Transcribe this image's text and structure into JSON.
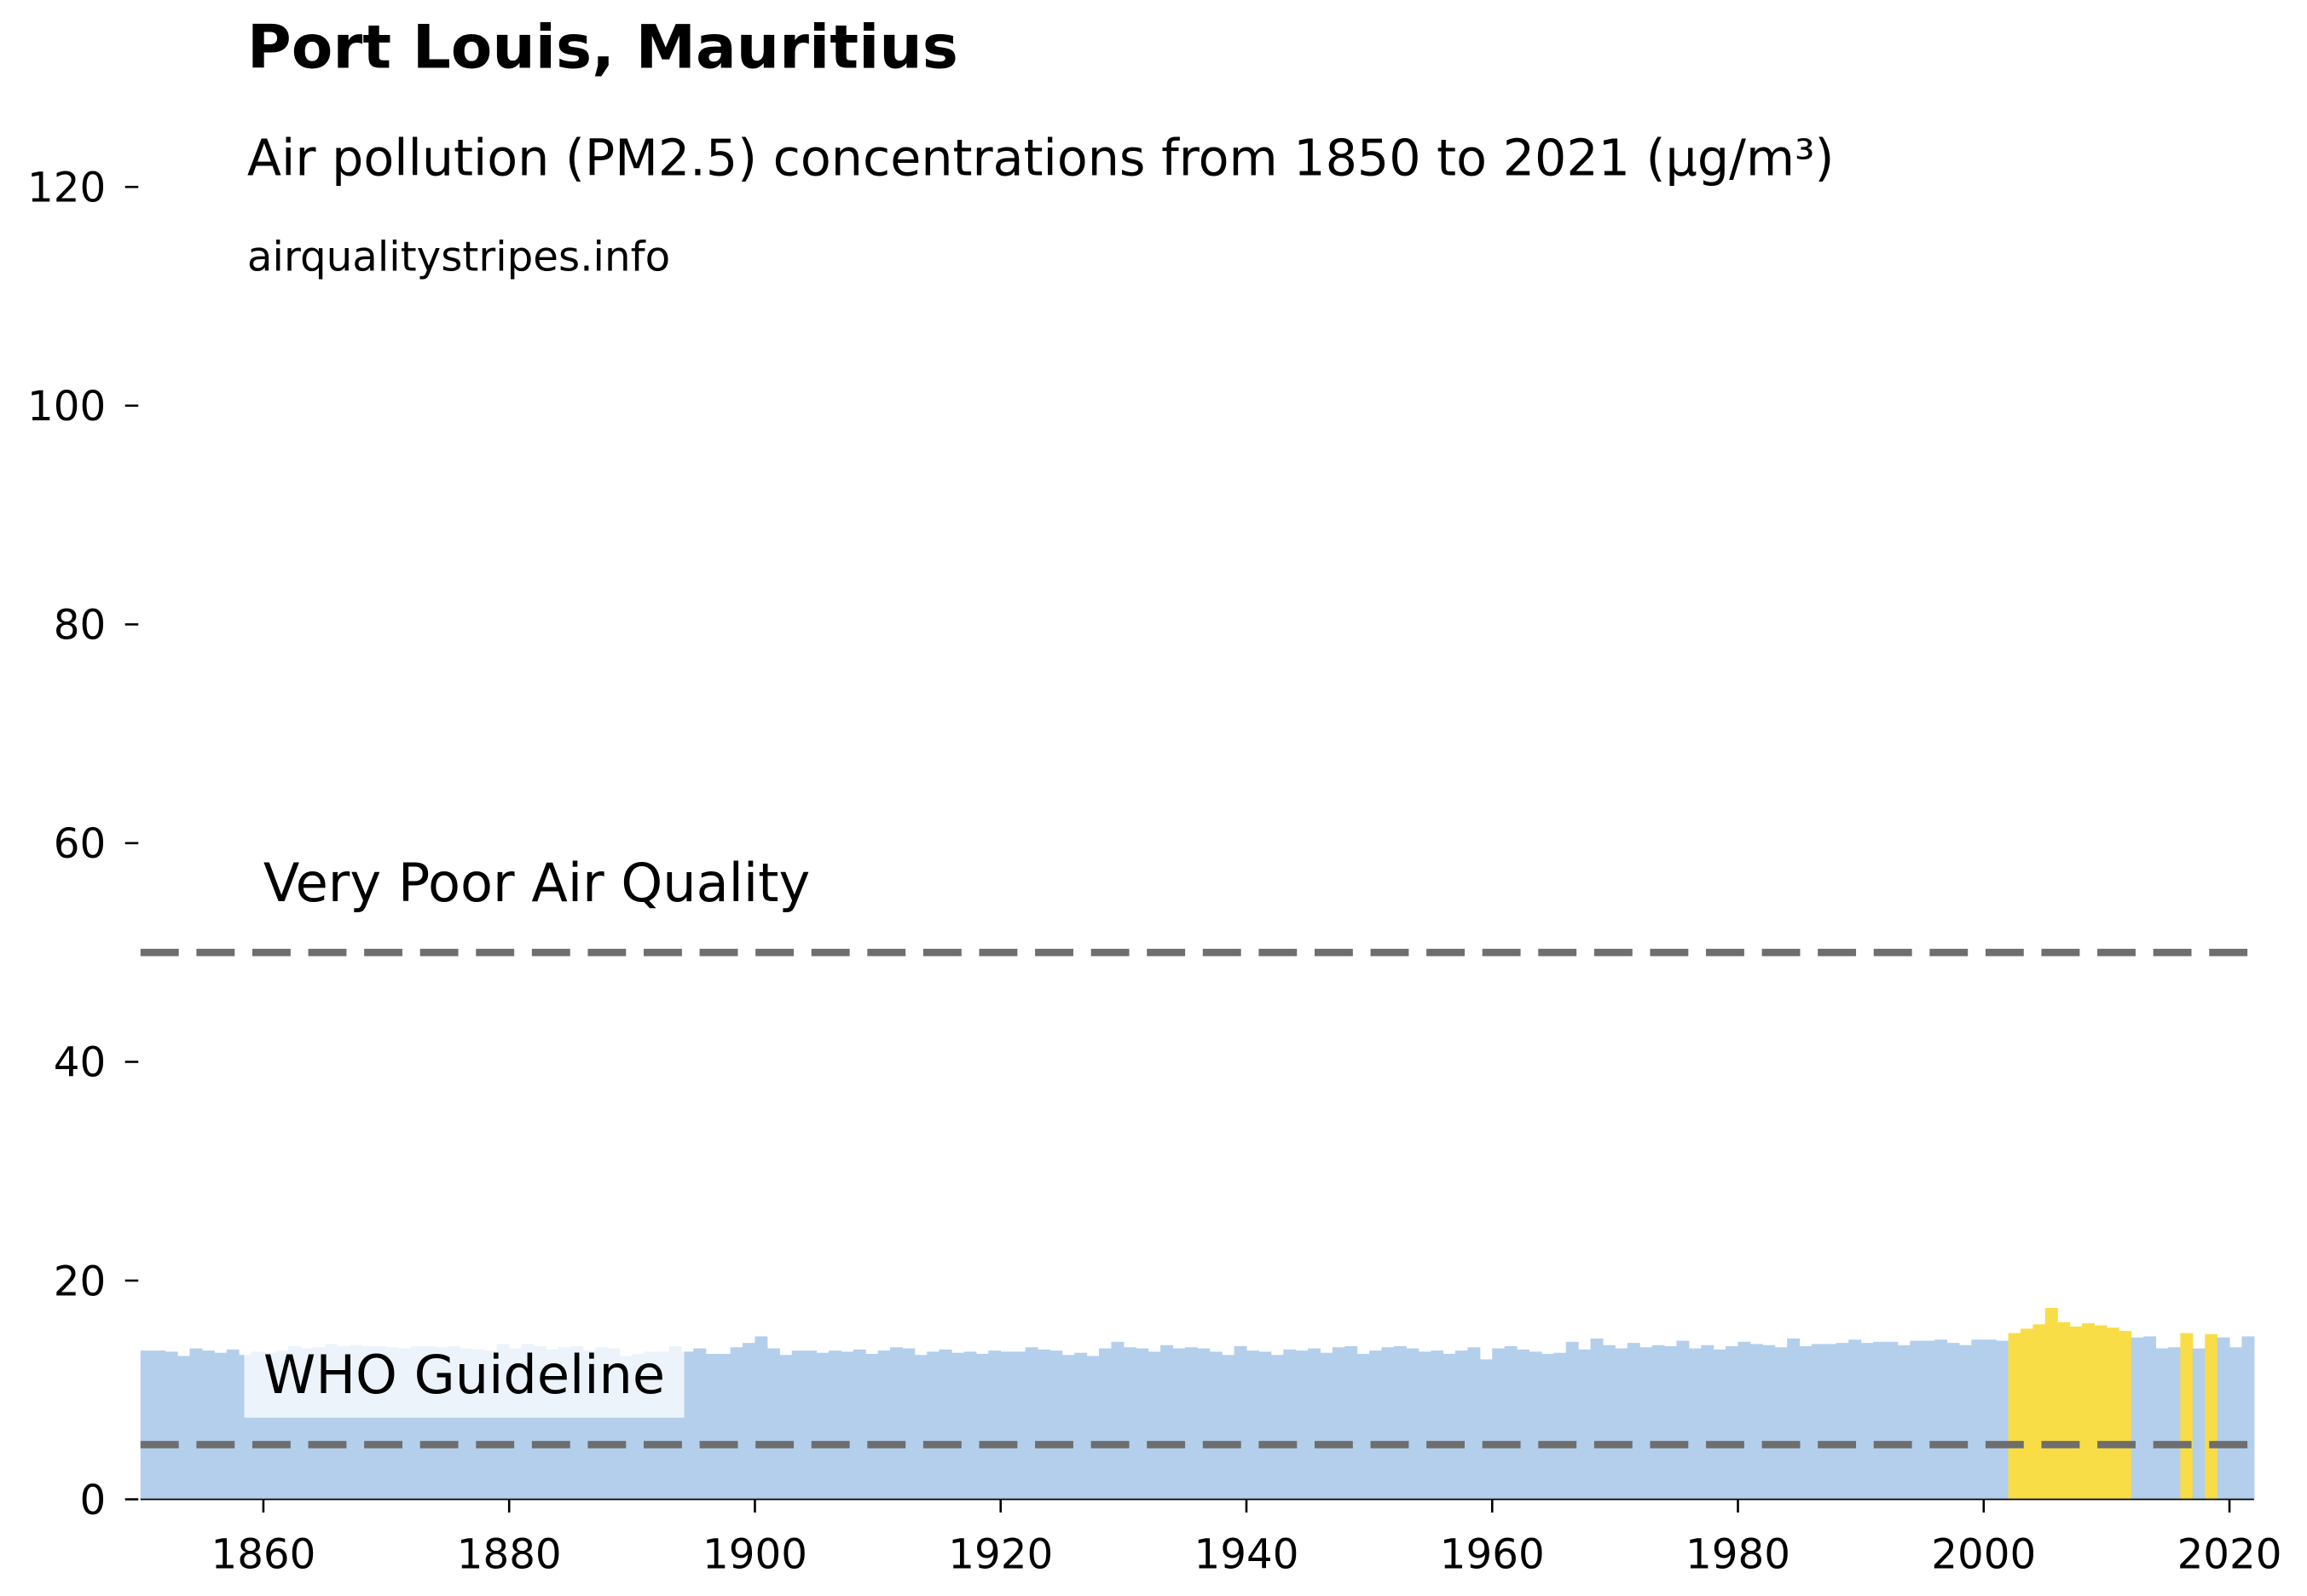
{
  "chart_data": {
    "type": "bar",
    "title": "Port Louis, Mauritius",
    "subtitle": "Air pollution (PM2.5) concentrations from 1850 to 2021 (µg/m³)",
    "source": "airqualitystripes.info",
    "x": [
      1850,
      1851,
      1852,
      1853,
      1854,
      1855,
      1856,
      1857,
      1858,
      1859,
      1860,
      1861,
      1862,
      1863,
      1864,
      1865,
      1866,
      1867,
      1868,
      1869,
      1870,
      1871,
      1872,
      1873,
      1874,
      1875,
      1876,
      1877,
      1878,
      1879,
      1880,
      1881,
      1882,
      1883,
      1884,
      1885,
      1886,
      1887,
      1888,
      1889,
      1890,
      1891,
      1892,
      1893,
      1894,
      1895,
      1896,
      1897,
      1898,
      1899,
      1900,
      1901,
      1902,
      1903,
      1904,
      1905,
      1906,
      1907,
      1908,
      1909,
      1910,
      1911,
      1912,
      1913,
      1914,
      1915,
      1916,
      1917,
      1918,
      1919,
      1920,
      1921,
      1922,
      1923,
      1924,
      1925,
      1926,
      1927,
      1928,
      1929,
      1930,
      1931,
      1932,
      1933,
      1934,
      1935,
      1936,
      1937,
      1938,
      1939,
      1940,
      1941,
      1942,
      1943,
      1944,
      1945,
      1946,
      1947,
      1948,
      1949,
      1950,
      1951,
      1952,
      1953,
      1954,
      1955,
      1956,
      1957,
      1958,
      1959,
      1960,
      1961,
      1962,
      1963,
      1964,
      1965,
      1966,
      1967,
      1968,
      1969,
      1970,
      1971,
      1972,
      1973,
      1974,
      1975,
      1976,
      1977,
      1978,
      1979,
      1980,
      1981,
      1982,
      1983,
      1984,
      1985,
      1986,
      1987,
      1988,
      1989,
      1990,
      1991,
      1992,
      1993,
      1994,
      1995,
      1996,
      1997,
      1998,
      1999,
      2000,
      2001,
      2002,
      2003,
      2004,
      2005,
      2006,
      2007,
      2008,
      2009,
      2010,
      2011,
      2012,
      2013,
      2014,
      2015,
      2016,
      2017,
      2018,
      2019,
      2020,
      2021
    ],
    "values": [
      13.6,
      13.6,
      13.5,
      13.1,
      13.8,
      13.6,
      13.4,
      13.7,
      13.2,
      13.5,
      13.4,
      13.6,
      14.0,
      13.8,
      13.9,
      14.2,
      14.0,
      14.1,
      14.0,
      14.0,
      13.9,
      13.8,
      14.0,
      14.0,
      13.9,
      14.0,
      13.8,
      13.7,
      13.6,
      14.2,
      13.8,
      14.2,
      14.0,
      13.7,
      13.9,
      14.0,
      13.6,
      13.9,
      13.8,
      13.1,
      13.3,
      13.5,
      13.5,
      14.0,
      13.5,
      13.8,
      13.3,
      13.3,
      13.9,
      14.3,
      14.9,
      13.8,
      13.2,
      13.6,
      13.6,
      13.4,
      13.6,
      13.5,
      13.7,
      13.3,
      13.6,
      13.9,
      13.8,
      13.2,
      13.5,
      13.7,
      13.4,
      13.5,
      13.3,
      13.6,
      13.5,
      13.5,
      13.9,
      13.7,
      13.6,
      13.2,
      13.4,
      13.1,
      13.8,
      14.4,
      13.9,
      13.8,
      13.5,
      14.1,
      13.8,
      13.9,
      13.8,
      13.5,
      13.2,
      14.0,
      13.6,
      13.5,
      13.2,
      13.7,
      13.6,
      13.8,
      13.4,
      13.9,
      14.0,
      13.3,
      13.6,
      13.9,
      14.0,
      13.8,
      13.5,
      13.6,
      13.3,
      13.6,
      13.9,
      12.8,
      13.8,
      14.0,
      13.7,
      13.5,
      13.3,
      13.4,
      14.4,
      13.7,
      14.7,
      14.1,
      13.8,
      14.3,
      13.9,
      14.1,
      14.0,
      14.5,
      13.8,
      14.1,
      13.7,
      14.0,
      14.4,
      14.2,
      14.1,
      13.9,
      14.7,
      14.0,
      14.2,
      14.2,
      14.3,
      14.6,
      14.3,
      14.4,
      14.4,
      14.1,
      14.5,
      14.5,
      14.6,
      14.3,
      14.1,
      14.6,
      14.6,
      14.5,
      15.2,
      15.6,
      16.0,
      17.5,
      16.2,
      15.8,
      16.1,
      15.9,
      15.7,
      15.4,
      14.8,
      14.9,
      13.8,
      13.9,
      15.2,
      13.8,
      15.1,
      14.8,
      13.9,
      14.9
    ],
    "colors": [
      "#b3cfec",
      "#b3cfec",
      "#b3cfec",
      "#b3cfec",
      "#b3cfec",
      "#b3cfec",
      "#b3cfec",
      "#b3cfec",
      "#b3cfec",
      "#b3cfec",
      "#b3cfec",
      "#b3cfec",
      "#b3cfec",
      "#b3cfec",
      "#b3cfec",
      "#b3cfec",
      "#b3cfec",
      "#b3cfec",
      "#b3cfec",
      "#b3cfec",
      "#b3cfec",
      "#b3cfec",
      "#b3cfec",
      "#b3cfec",
      "#b3cfec",
      "#b3cfec",
      "#b3cfec",
      "#b3cfec",
      "#b3cfec",
      "#b3cfec",
      "#b3cfec",
      "#b3cfec",
      "#b3cfec",
      "#b3cfec",
      "#b3cfec",
      "#b3cfec",
      "#b3cfec",
      "#b3cfec",
      "#b3cfec",
      "#b3cfec",
      "#b3cfec",
      "#b3cfec",
      "#b3cfec",
      "#b3cfec",
      "#b3cfec",
      "#b3cfec",
      "#b3cfec",
      "#b3cfec",
      "#b3cfec",
      "#b3cfec",
      "#b3cfec",
      "#b3cfec",
      "#b3cfec",
      "#b3cfec",
      "#b3cfec",
      "#b3cfec",
      "#b3cfec",
      "#b3cfec",
      "#b3cfec",
      "#b3cfec",
      "#b3cfec",
      "#b3cfec",
      "#b3cfec",
      "#b3cfec",
      "#b3cfec",
      "#b3cfec",
      "#b3cfec",
      "#b3cfec",
      "#b3cfec",
      "#b3cfec",
      "#b3cfec",
      "#b3cfec",
      "#b3cfec",
      "#b3cfec",
      "#b3cfec",
      "#b3cfec",
      "#b3cfec",
      "#b3cfec",
      "#b3cfec",
      "#b3cfec",
      "#b3cfec",
      "#b3cfec",
      "#b3cfec",
      "#b3cfec",
      "#b3cfec",
      "#b3cfec",
      "#b3cfec",
      "#b3cfec",
      "#b3cfec",
      "#b3cfec",
      "#b3cfec",
      "#b3cfec",
      "#b3cfec",
      "#b3cfec",
      "#b3cfec",
      "#b3cfec",
      "#b3cfec",
      "#b3cfec",
      "#b3cfec",
      "#b3cfec",
      "#b3cfec",
      "#b3cfec",
      "#b3cfec",
      "#b3cfec",
      "#b3cfec",
      "#b3cfec",
      "#b3cfec",
      "#b3cfec",
      "#b3cfec",
      "#b3cfec",
      "#b3cfec",
      "#b3cfec",
      "#b3cfec",
      "#b3cfec",
      "#b3cfec",
      "#b3cfec",
      "#b3cfec",
      "#b3cfec",
      "#b3cfec",
      "#b3cfec",
      "#b3cfec",
      "#b3cfec",
      "#b3cfec",
      "#b3cfec",
      "#b3cfec",
      "#b3cfec",
      "#b3cfec",
      "#b3cfec",
      "#b3cfec",
      "#b3cfec",
      "#b3cfec",
      "#b3cfec",
      "#b3cfec",
      "#b3cfec",
      "#b3cfec",
      "#b3cfec",
      "#b3cfec",
      "#b3cfec",
      "#b3cfec",
      "#b3cfec",
      "#b3cfec",
      "#b3cfec",
      "#b3cfec",
      "#b3cfec",
      "#b3cfec",
      "#b3cfec",
      "#b3cfec",
      "#b3cfec",
      "#b3cfec",
      "#b3cfec",
      "#b3cfec",
      "#b3cfec",
      "#f8dd46",
      "#f8dd46",
      "#f8dd46",
      "#f8dd46",
      "#f8dd46",
      "#f8dd46",
      "#f8dd46",
      "#f8dd46",
      "#f8dd46",
      "#f8dd46",
      "#b3cfec",
      "#b3cfec",
      "#b3cfec",
      "#b3cfec",
      "#f8dd46",
      "#b3cfec",
      "#f8dd46",
      "#b3cfec",
      "#b3cfec",
      "#b3cfec"
    ],
    "xlim": [
      1850,
      2022
    ],
    "xticks": [
      1860,
      1880,
      1900,
      1920,
      1940,
      1960,
      1980,
      2000,
      2020
    ],
    "ylim": [
      0,
      128
    ],
    "yticks": [
      0,
      20,
      40,
      60,
      80,
      100,
      120
    ],
    "reference_lines": [
      {
        "value": 5,
        "label": "WHO Guideline",
        "color": "#6e6e6e"
      },
      {
        "value": 50,
        "label": "Very Poor Air Quality",
        "color": "#6e6e6e"
      }
    ]
  }
}
